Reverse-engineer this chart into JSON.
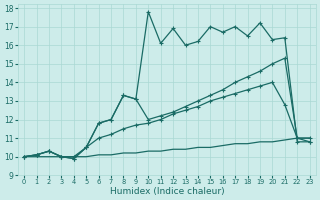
{
  "xlabel": "Humidex (Indice chaleur)",
  "bg_color": "#cdecea",
  "grid_color": "#aad8d4",
  "line_color": "#1a6b65",
  "xlim": [
    -0.5,
    23.5
  ],
  "ylim": [
    9,
    18.2
  ],
  "xticks": [
    0,
    1,
    2,
    3,
    4,
    5,
    6,
    7,
    8,
    9,
    10,
    11,
    12,
    13,
    14,
    15,
    16,
    17,
    18,
    19,
    20,
    21,
    22,
    23
  ],
  "yticks": [
    9,
    10,
    11,
    12,
    13,
    14,
    15,
    16,
    17,
    18
  ],
  "line_flat_x": [
    0,
    1,
    2,
    3,
    4,
    5,
    6,
    7,
    8,
    9,
    10,
    11,
    12,
    13,
    14,
    15,
    16,
    17,
    18,
    19,
    20,
    21,
    22,
    23
  ],
  "line_flat_y": [
    10.0,
    10.0,
    10.0,
    10.0,
    10.0,
    10.0,
    10.1,
    10.1,
    10.2,
    10.2,
    10.3,
    10.3,
    10.4,
    10.4,
    10.5,
    10.5,
    10.6,
    10.7,
    10.7,
    10.8,
    10.8,
    10.9,
    11.0,
    11.0
  ],
  "line_mid_x": [
    0,
    1,
    2,
    3,
    4,
    5,
    6,
    7,
    8,
    9,
    10,
    11,
    12,
    13,
    14,
    15,
    16,
    17,
    18,
    19,
    20,
    21,
    22,
    23
  ],
  "line_mid_y": [
    10.0,
    10.1,
    10.3,
    10.0,
    10.0,
    10.5,
    11.0,
    11.2,
    11.5,
    11.7,
    11.8,
    12.0,
    12.3,
    12.5,
    12.7,
    13.0,
    13.2,
    13.4,
    13.6,
    13.8,
    14.0,
    12.8,
    11.0,
    11.0
  ],
  "line_diag_x": [
    0,
    1,
    2,
    3,
    4,
    5,
    6,
    7,
    8,
    9,
    10,
    11,
    12,
    13,
    14,
    15,
    16,
    17,
    18,
    19,
    20,
    21,
    22,
    23
  ],
  "line_diag_y": [
    10.0,
    10.1,
    10.3,
    10.0,
    9.9,
    10.5,
    11.8,
    12.0,
    13.3,
    13.1,
    12.0,
    12.2,
    12.4,
    12.7,
    13.0,
    13.3,
    13.6,
    14.0,
    14.3,
    14.6,
    15.0,
    15.3,
    11.0,
    10.8
  ],
  "line_jagged_x": [
    0,
    1,
    2,
    3,
    4,
    5,
    6,
    7,
    8,
    9,
    10,
    11,
    12,
    13,
    14,
    15,
    16,
    17,
    18,
    19,
    20,
    21,
    22,
    23
  ],
  "line_jagged_y": [
    10.0,
    10.1,
    10.3,
    10.0,
    9.9,
    10.5,
    11.8,
    12.0,
    13.3,
    13.1,
    17.8,
    16.1,
    16.9,
    16.0,
    16.2,
    17.0,
    16.7,
    17.0,
    16.5,
    17.2,
    16.3,
    16.4,
    10.8,
    10.8
  ]
}
